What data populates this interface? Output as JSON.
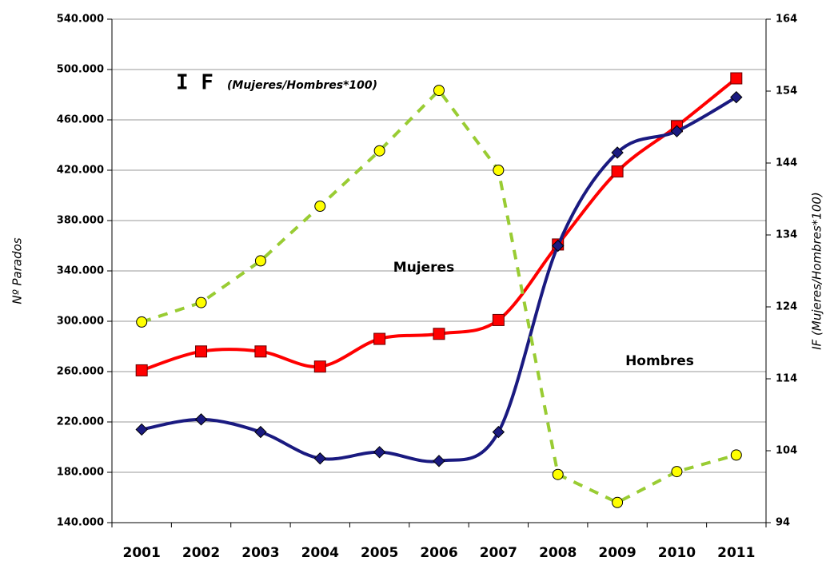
{
  "chart_data": {
    "type": "line",
    "categories": [
      "2001",
      "2002",
      "2003",
      "2004",
      "2005",
      "2006",
      "2007",
      "2008",
      "2009",
      "2010",
      "2011"
    ],
    "series": [
      {
        "name": "Mujeres",
        "color": "#ff0000",
        "marker": "square",
        "values": [
          261000,
          276000,
          276000,
          264000,
          286000,
          290000,
          301000,
          361000,
          419000,
          455000,
          493000
        ]
      },
      {
        "name": "Hombres",
        "color": "#1a1a80",
        "marker": "diamond",
        "values": [
          214000,
          222000,
          212000,
          191000,
          196000,
          189000,
          212000,
          360000,
          434000,
          451000,
          478000
        ]
      },
      {
        "name": "I F",
        "color": "#99cc33",
        "marker": "circle",
        "axis": "y2",
        "values": [
          121.9,
          124.6,
          130.4,
          138,
          145.7,
          154.1,
          143,
          100.7,
          96.8,
          101.1,
          103.4
        ]
      }
    ],
    "annotations": [
      "(Mujeres/Hombres*100)"
    ],
    "y_label": "Nº Parados",
    "y2_label": "IF (Mujeres/Hombres*100)",
    "ylim": [
      140000,
      540000
    ],
    "yticks": [
      {
        "value": 140000,
        "label": "140.000"
      },
      {
        "value": 180000,
        "label": "180.000"
      },
      {
        "value": 220000,
        "label": "220.000"
      },
      {
        "value": 260000,
        "label": "260.000"
      },
      {
        "value": 300000,
        "label": "300.000"
      },
      {
        "value": 340000,
        "label": "340.000"
      },
      {
        "value": 380000,
        "label": "380.000"
      },
      {
        "value": 420000,
        "label": "420.000"
      },
      {
        "value": 460000,
        "label": "460.000"
      },
      {
        "value": 500000,
        "label": "500.000"
      },
      {
        "value": 540000,
        "label": "540.000"
      }
    ],
    "y2lim": [
      94,
      164
    ],
    "y2ticks": [
      94,
      104,
      114,
      124,
      134,
      144,
      154,
      164
    ],
    "grid": true
  }
}
